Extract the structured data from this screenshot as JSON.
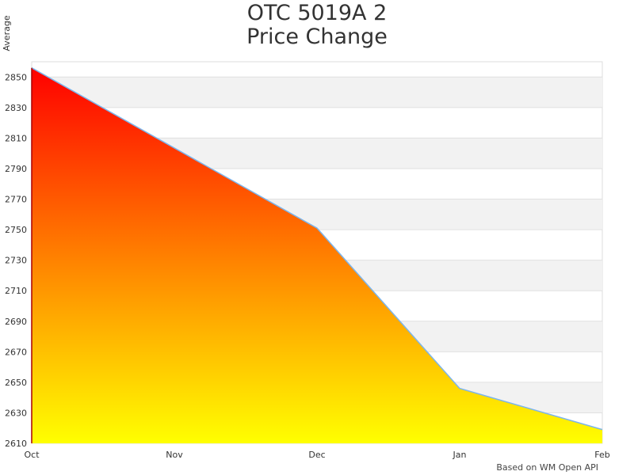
{
  "chart_data": {
    "type": "area",
    "title_line1": "OTC 5019A 2",
    "title_line2": "Price Change",
    "ylabel": "Average",
    "xlabel": "",
    "categories": [
      "Oct",
      "Nov",
      "Dec",
      "Jan",
      "Feb"
    ],
    "points": [
      {
        "x": "Oct",
        "y": 2856
      },
      {
        "x": "Dec",
        "y": 2751
      },
      {
        "x": "Jan",
        "y": 2646
      },
      {
        "x": "Feb",
        "y": 2619
      }
    ],
    "yticks": [
      2610,
      2630,
      2650,
      2670,
      2690,
      2710,
      2730,
      2750,
      2770,
      2790,
      2810,
      2830,
      2850
    ],
    "ylim": [
      2610,
      2860
    ],
    "grid": true,
    "alternating_bands": true,
    "colors": {
      "fill_top": "#ff0000",
      "fill_bottom": "#ffff00",
      "line": "#7cb5ec",
      "band": "#f2f2f2"
    }
  },
  "credit": "Based on WM Open API"
}
